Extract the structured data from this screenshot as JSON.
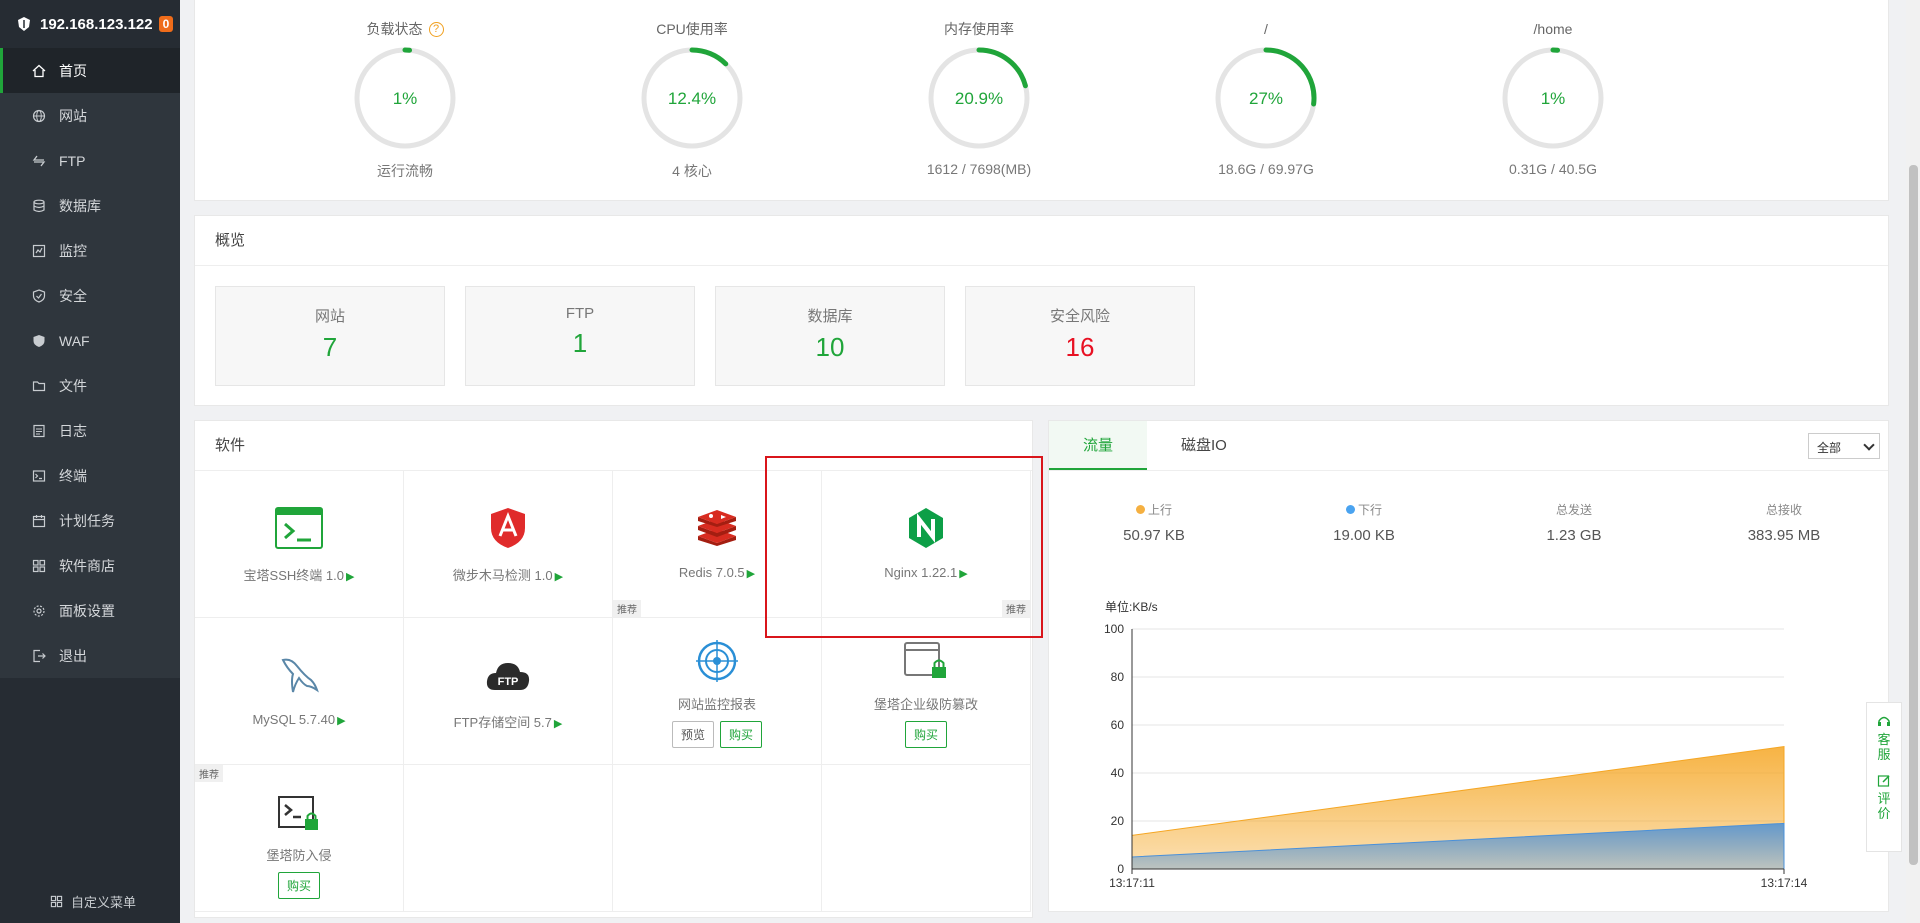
{
  "header": {
    "ip": "192.168.123.122",
    "badge": "0"
  },
  "sidebar": {
    "items": [
      {
        "label": "首页",
        "icon": "home-icon"
      },
      {
        "label": "网站",
        "icon": "globe-icon"
      },
      {
        "label": "FTP",
        "icon": "ftp-icon"
      },
      {
        "label": "数据库",
        "icon": "database-icon"
      },
      {
        "label": "监控",
        "icon": "monitor-icon"
      },
      {
        "label": "安全",
        "icon": "shield-icon"
      },
      {
        "label": "WAF",
        "icon": "waf-icon"
      },
      {
        "label": "文件",
        "icon": "folder-icon"
      },
      {
        "label": "日志",
        "icon": "log-icon"
      },
      {
        "label": "终端",
        "icon": "terminal-icon"
      },
      {
        "label": "计划任务",
        "icon": "calendar-icon"
      },
      {
        "label": "软件商店",
        "icon": "grid-icon"
      },
      {
        "label": "面板设置",
        "icon": "gear-icon"
      },
      {
        "label": "退出",
        "icon": "logout-icon"
      }
    ],
    "footer": "自定义菜单"
  },
  "gauges": [
    {
      "title": "负载状态",
      "value": "1%",
      "percent": 1,
      "bottom": "运行流畅"
    },
    {
      "title": "CPU使用率",
      "value": "12.4%",
      "percent": 12.4,
      "bottom": "4 核心"
    },
    {
      "title": "内存使用率",
      "value": "20.9%",
      "percent": 20.9,
      "bottom": "1612 / 7698(MB)"
    },
    {
      "title": "/",
      "value": "27%",
      "percent": 27,
      "bottom": "18.6G / 69.97G"
    },
    {
      "title": "/home",
      "value": "1%",
      "percent": 1,
      "bottom": "0.31G / 40.5G"
    }
  ],
  "overview": {
    "title": "概览",
    "cards": [
      {
        "label": "网站",
        "value": "7"
      },
      {
        "label": "FTP",
        "value": "1"
      },
      {
        "label": "数据库",
        "value": "10"
      },
      {
        "label": "安全风险",
        "value": "16"
      }
    ]
  },
  "software": {
    "title": "软件",
    "tag": "推荐",
    "preview": "预览",
    "buy": "购买",
    "items": [
      {
        "name": "宝塔SSH终端 1.0"
      },
      {
        "name": "微步木马检测 1.0"
      },
      {
        "name": "Redis 7.0.5"
      },
      {
        "name": "Nginx 1.22.1"
      },
      {
        "name": "MySQL 5.7.40"
      },
      {
        "name": "FTP存储空间 5.7"
      },
      {
        "name": "网站监控报表"
      },
      {
        "name": "堡塔企业级防篡改"
      },
      {
        "name": "堡塔防入侵"
      }
    ]
  },
  "traffic": {
    "tabs": [
      "流量",
      "磁盘IO"
    ],
    "select": "全部",
    "stats": [
      {
        "label": "上行",
        "value": "50.97 KB",
        "color": "#f5b041"
      },
      {
        "label": "下行",
        "value": "19.00 KB",
        "color": "#4aa3f0"
      },
      {
        "label": "总发送",
        "value": "1.23 GB"
      },
      {
        "label": "总接收",
        "value": "383.95 MB"
      }
    ]
  },
  "chart_data": {
    "type": "area",
    "ylabel": "单位:KB/s",
    "ylim": [
      0,
      100
    ],
    "yticks": [
      "0",
      "20",
      "40",
      "60",
      "80",
      "100"
    ],
    "x": [
      "13:17:11",
      "13:17:14"
    ],
    "series": [
      {
        "name": "上行",
        "values": [
          14,
          51
        ],
        "color": "#f5a623"
      },
      {
        "name": "下行",
        "values": [
          5,
          19
        ],
        "color": "#4a90d9"
      }
    ]
  },
  "floatbar": {
    "service": "客服",
    "review": "评价"
  }
}
